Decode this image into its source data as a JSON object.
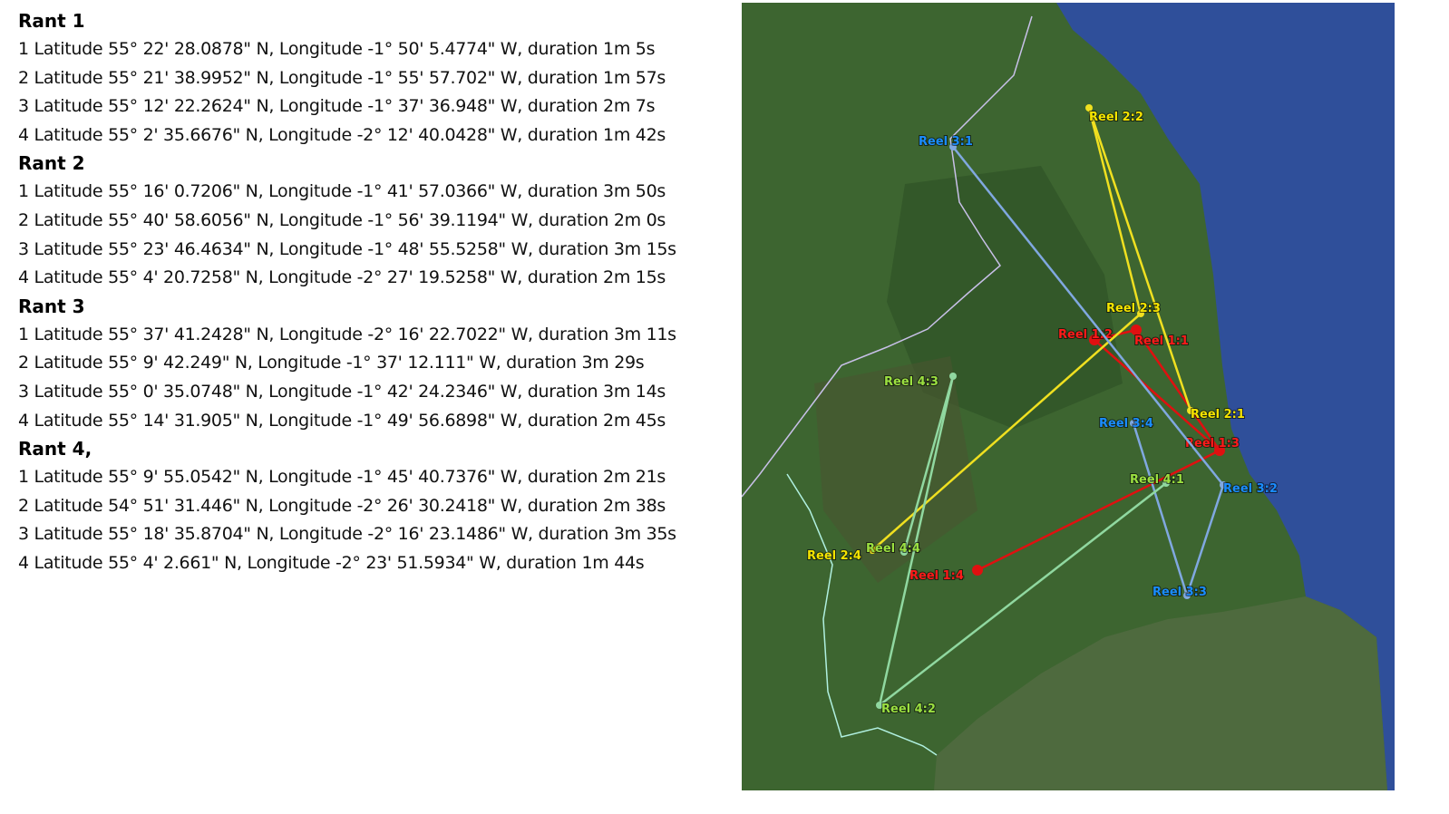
{
  "rants": [
    {
      "title": "Rant 1",
      "points": [
        "1 Latitude 55° 22' 28.0878\" N, Longitude -1° 50' 5.4774\" W, duration 1m 5s",
        "2 Latitude 55° 21' 38.9952\" N, Longitude -1° 55' 57.702\" W, duration 1m 57s",
        "3 Latitude 55° 12' 22.2624\" N, Longitude -1° 37' 36.948\" W, duration 2m 7s",
        "4 Latitude 55° 2' 35.6676\" N, Longitude -2° 12' 40.0428\" W, duration 1m 42s"
      ]
    },
    {
      "title": "Rant 2",
      "points": [
        "1 Latitude 55° 16' 0.7206\" N, Longitude -1° 41' 57.0366\" W, duration 3m 50s",
        "2 Latitude 55° 40' 58.6056\" N, Longitude -1° 56' 39.1194\" W, duration 2m 0s",
        "3 Latitude 55° 23' 46.4634\" N, Longitude -1° 48' 55.5258\" W, duration 3m 15s",
        "4 Latitude 55° 4' 20.7258\" N, Longitude -2° 27' 19.5258\" W, duration 2m 15s"
      ]
    },
    {
      "title": "Rant 3",
      "points": [
        "1 Latitude 55° 37' 41.2428\" N, Longitude -2° 16' 22.7022\" W, duration 3m 11s",
        "2 Latitude 55° 9' 42.249\" N, Longitude -1° 37' 12.111\" W, duration 3m 29s",
        "3 Latitude 55° 0' 35.0748\" N, Longitude -1° 42' 24.2346\" W, duration 3m 14s",
        "4 Latitude 55° 14' 31.905\" N, Longitude -1° 49' 56.6898\" W, duration 2m 45s"
      ]
    },
    {
      "title": "Rant 4,",
      "points": [
        "1 Latitude 55° 9' 55.0542\" N, Longitude -1° 45' 40.7376\" W, duration 2m 21s",
        "2 Latitude 54° 51' 31.446\" N, Longitude -2° 26' 30.2418\" W, duration 2m 38s",
        "3 Latitude 55° 18' 35.8704\" N, Longitude -2° 16' 23.1486\" W, duration 3m 35s",
        "4 Latitude 55° 4' 2.661\" N, Longitude -2° 23' 51.5934\" W, duration 1m 44s"
      ]
    }
  ],
  "map": {
    "colors": {
      "land": "#3f6a2f",
      "sea": "#2f4f9a",
      "county": "#4e6a3e",
      "reel1": "#e01010",
      "reel2": "#f0e020",
      "reel3": "#80a8e0",
      "reel4": "#90d8a0"
    },
    "reels": [
      {
        "color_key": "reel1",
        "label_color": "#ff1a1a",
        "points": [
          {
            "label": "Reel 1:1"
          },
          {
            "label": "Reel 1:2"
          },
          {
            "label": "Reel 1:3"
          },
          {
            "label": "Reel 1:4"
          }
        ]
      },
      {
        "color_key": "reel2",
        "label_color": "#f5e400",
        "points": [
          {
            "label": "Reel 2:1"
          },
          {
            "label": "Reel 2:2"
          },
          {
            "label": "Reel 2:3"
          },
          {
            "label": "Reel 2:4"
          }
        ]
      },
      {
        "color_key": "reel3",
        "label_color": "#1a8cff",
        "points": [
          {
            "label": "Reel 3:1"
          },
          {
            "label": "Reel 3:2"
          },
          {
            "label": "Reel 3:3"
          },
          {
            "label": "Reel 3:4"
          }
        ]
      },
      {
        "color_key": "reel4",
        "label_color": "#9be040",
        "points": [
          {
            "label": "Reel 4:1"
          },
          {
            "label": "Reel 4:2"
          },
          {
            "label": "Reel 4:3"
          },
          {
            "label": "Reel 4:4"
          }
        ]
      }
    ]
  }
}
